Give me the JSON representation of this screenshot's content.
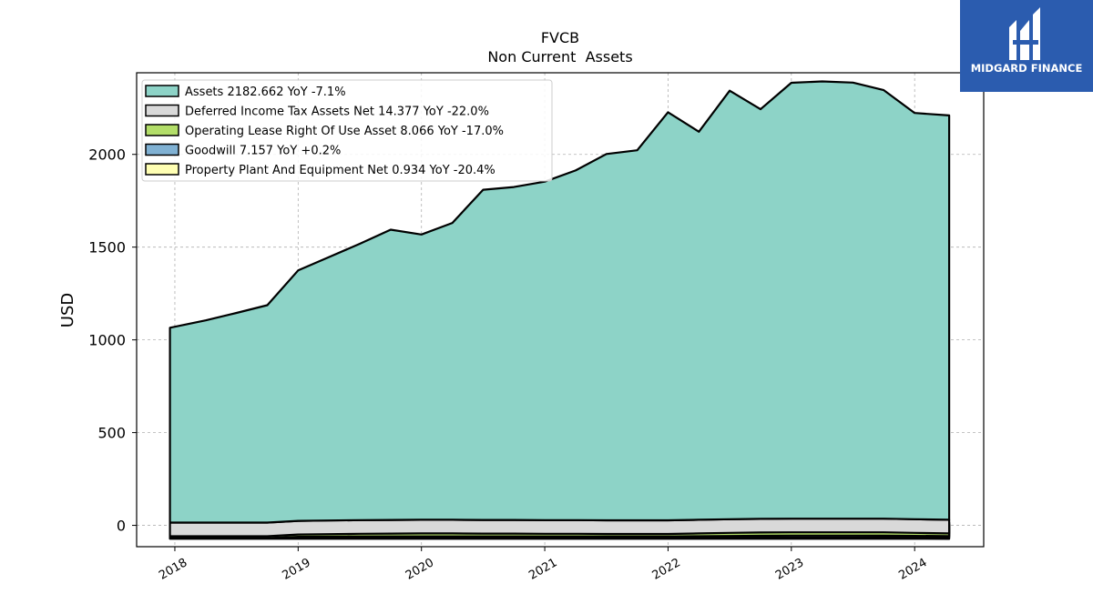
{
  "brand": {
    "name": "MIDGARD FINANCE",
    "color": "#2b5caf"
  },
  "chart_data": {
    "type": "area",
    "title": "FVCB",
    "subtitle": "Non Current  Assets",
    "ylabel": "USD",
    "xlabel": "",
    "ylim": [
      -115,
      2440
    ],
    "xlim": [
      2017.69,
      2024.56
    ],
    "yticks": [
      0,
      500,
      1000,
      1500,
      2000
    ],
    "xticks": [
      "2018",
      "2019",
      "2020",
      "2021",
      "2022",
      "2023",
      "2024"
    ],
    "grid": true,
    "legend_position": "top-left",
    "x": [
      2017.96,
      2018.25,
      2018.5,
      2018.75,
      2019.0,
      2019.25,
      2019.5,
      2019.75,
      2020.0,
      2020.25,
      2020.5,
      2020.75,
      2021.0,
      2021.25,
      2021.5,
      2021.75,
      2022.0,
      2022.25,
      2022.5,
      2022.75,
      2023.0,
      2023.25,
      2023.5,
      2023.75,
      2024.0,
      2024.28
    ],
    "series": [
      {
        "name": "Assets",
        "legend": "Assets  2182.662 YoY -7.1%",
        "color": "#8dd3c7",
        "values": [
          1050,
          1090,
          1130,
          1172,
          1350,
          1420,
          1490,
          1565,
          1538,
          1600,
          1780,
          1795,
          1825,
          1885,
          1975,
          1995,
          2200,
          2092,
          2310,
          2208,
          2350,
          2357,
          2351,
          2310,
          2190,
          2180
        ]
      },
      {
        "name": "Deferred Income Tax Assets Net",
        "legend": "Deferred Income Tax Assets Net  14.377 YoY -22.0%",
        "color": "#d9d9d9",
        "values": [
          10,
          10,
          10,
          10,
          12,
          13,
          14,
          15,
          16,
          16,
          15,
          15,
          14,
          14,
          13,
          13,
          13,
          15,
          17,
          18,
          18,
          18,
          18,
          18,
          16,
          14
        ]
      },
      {
        "name": "Operating Lease Right Of Use Asset",
        "legend": "Operating Lease Right Of Use Asset  8.066 YoY -17.0%",
        "color": "#b3de69",
        "values": [
          0,
          0,
          0,
          0,
          4,
          5,
          6,
          6,
          6,
          6,
          6,
          6,
          6,
          6,
          6,
          6,
          6,
          7,
          8,
          9,
          10,
          10,
          10,
          10,
          9,
          8
        ]
      },
      {
        "name": "Goodwill",
        "legend": "Goodwill  7.157 YoY +0.2%",
        "color": "#80b1d3",
        "values": [
          4,
          4,
          4,
          4,
          7,
          7,
          7,
          7,
          7,
          7,
          7,
          7,
          7,
          7,
          7,
          7,
          7,
          7,
          7,
          7,
          7,
          7,
          7,
          7,
          7,
          7
        ]
      },
      {
        "name": "Property Plant And Equipment Net",
        "legend": "Property Plant And Equipment Net  0.934 YoY -20.4%",
        "color": "#ffffb3",
        "values": [
          1.2,
          1.2,
          1.2,
          1.2,
          1.2,
          1.2,
          1.2,
          1.2,
          1.2,
          1.2,
          1.2,
          1.2,
          1.2,
          1.2,
          1.2,
          1.2,
          1.2,
          1.2,
          1.2,
          1.2,
          1.2,
          1.2,
          1.2,
          1.1,
          1.0,
          0.93
        ]
      }
    ]
  }
}
